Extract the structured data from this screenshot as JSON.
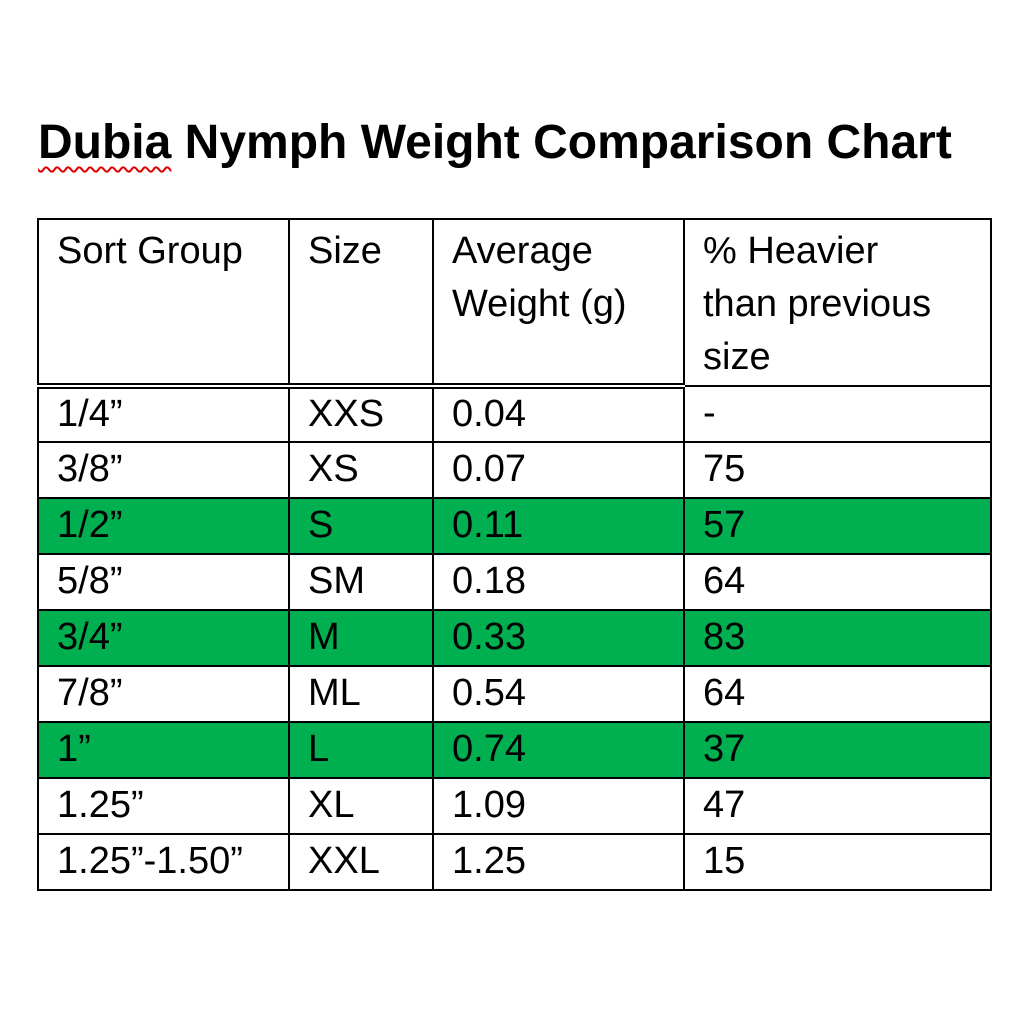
{
  "page": {
    "background": "#ffffff"
  },
  "title": {
    "misspelled_word": "Dubia",
    "rest": " Nymph Weight Comparison Chart",
    "full": "Dubia Nymph Weight Comparison Chart",
    "spellcheck_underline_color": "#e00000"
  },
  "table": {
    "columns": [
      "Sort Group",
      "Size",
      "Average\nWeight (g)",
      "% Heavier\nthan previous\nsize"
    ],
    "highlight_color": "#00b050",
    "rows": [
      {
        "sort_group": "1/4”",
        "size": "XXS",
        "avg_weight_g": "0.04",
        "pct_heavier": "-",
        "highlighted": false
      },
      {
        "sort_group": "3/8”",
        "size": "XS",
        "avg_weight_g": "0.07",
        "pct_heavier": "75",
        "highlighted": false
      },
      {
        "sort_group": "1/2”",
        "size": "S",
        "avg_weight_g": "0.11",
        "pct_heavier": "57",
        "highlighted": true
      },
      {
        "sort_group": "5/8”",
        "size": "SM",
        "avg_weight_g": "0.18",
        "pct_heavier": "64",
        "highlighted": false
      },
      {
        "sort_group": "3/4”",
        "size": "M",
        "avg_weight_g": "0.33",
        "pct_heavier": "83",
        "highlighted": true
      },
      {
        "sort_group": "7/8”",
        "size": "ML",
        "avg_weight_g": "0.54",
        "pct_heavier": "64",
        "highlighted": false
      },
      {
        "sort_group": "1”",
        "size": "L",
        "avg_weight_g": "0.74",
        "pct_heavier": "37",
        "highlighted": true
      },
      {
        "sort_group": "1.25”",
        "size": "XL",
        "avg_weight_g": "1.09",
        "pct_heavier": "47",
        "highlighted": false
      },
      {
        "sort_group": "1.25”-1.50”",
        "size": "XXL",
        "avg_weight_g": "1.25",
        "pct_heavier": "15",
        "highlighted": false
      }
    ]
  },
  "chart_data": {
    "type": "table",
    "title": "Dubia Nymph Weight Comparison Chart",
    "columns": [
      "Sort Group",
      "Size",
      "Average Weight (g)",
      "% Heavier than previous size"
    ],
    "rows": [
      [
        "1/4”",
        "XXS",
        0.04,
        "-"
      ],
      [
        "3/8”",
        "XS",
        0.07,
        75
      ],
      [
        "1/2”",
        "S",
        0.11,
        57
      ],
      [
        "5/8”",
        "SM",
        0.18,
        64
      ],
      [
        "3/4”",
        "M",
        0.33,
        83
      ],
      [
        "7/8”",
        "ML",
        0.54,
        64
      ],
      [
        "1”",
        "L",
        0.74,
        37
      ],
      [
        "1.25”",
        "XL",
        1.09,
        47
      ],
      [
        "1.25”-1.50”",
        "XXL",
        1.25,
        15
      ]
    ],
    "highlighted_row_indices": [
      2,
      4,
      6
    ]
  }
}
